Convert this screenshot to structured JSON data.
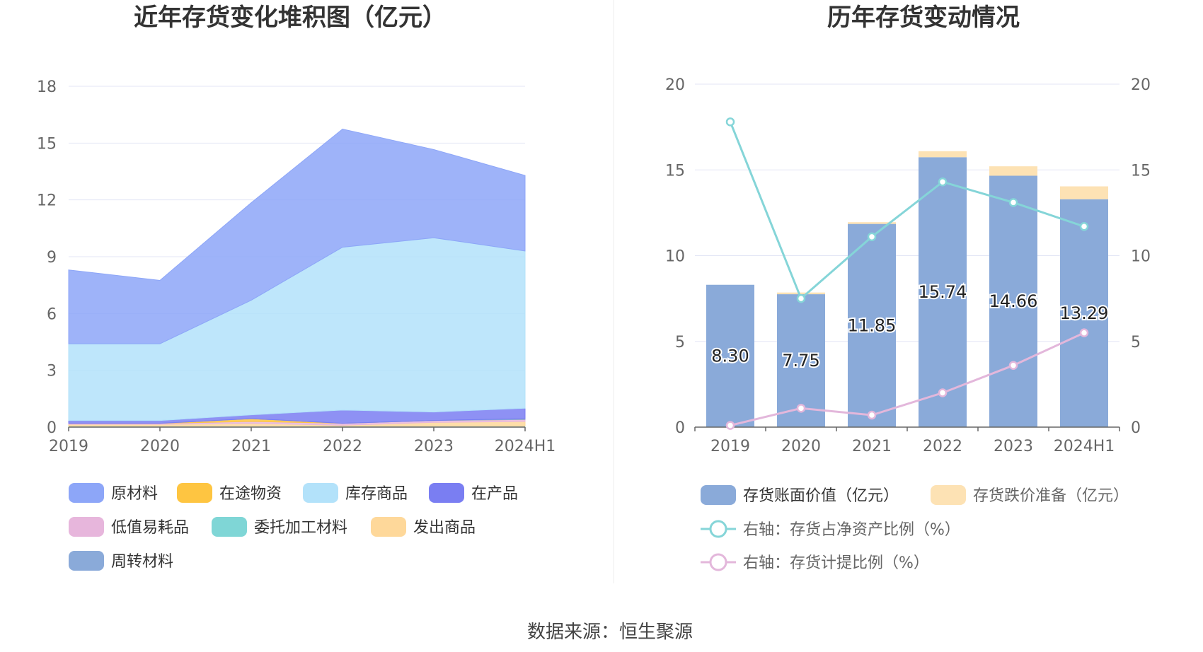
{
  "source_text": "数据来源：恒生聚源",
  "colors": {
    "raw_materials": "#8da6f8",
    "in_transit": "#fec541",
    "finished_goods": "#b3e2fa",
    "wip": "#7a7ef2",
    "low_value": "#e7b6dc",
    "outsourced": "#7fd6d6",
    "goods_shipped": "#fed89a",
    "turnover": "#8aaad9",
    "bar_book": "#8aaad9",
    "bar_reserve": "#fde2b4",
    "line_net_assets": "#85d5d8",
    "line_provision": "#e3b7db",
    "grid": "#e3e6f5",
    "axis": "#666666"
  },
  "chart_data": [
    {
      "type": "area",
      "stacked": true,
      "title": "近年存货变化堆积图（亿元）",
      "categories": [
        "2019",
        "2020",
        "2021",
        "2022",
        "2023",
        "2024H1"
      ],
      "ylim": [
        0,
        18
      ],
      "yticks": [
        "0",
        "3",
        "6",
        "9",
        "12",
        "15",
        "18"
      ],
      "grid": true,
      "legend_position": "bottom",
      "series": [
        {
          "key": "outsourced",
          "name": "委托加工材料",
          "values": [
            0.05,
            0.05,
            0.05,
            0.05,
            0.05,
            0.05
          ]
        },
        {
          "key": "goods_shipped",
          "name": "发出商品",
          "values": [
            0.1,
            0.1,
            0.15,
            0.05,
            0.2,
            0.25
          ]
        },
        {
          "key": "low_value",
          "name": "低值易耗品",
          "values": [
            0.05,
            0.05,
            0.1,
            0.1,
            0.1,
            0.1
          ]
        },
        {
          "key": "in_transit",
          "name": "在途物资",
          "values": [
            0.0,
            0.0,
            0.15,
            0.0,
            0.0,
            0.0
          ]
        },
        {
          "key": "turnover",
          "name": "周转材料",
          "values": [
            0.0,
            0.0,
            0.0,
            0.0,
            0.0,
            0.05
          ]
        },
        {
          "key": "wip",
          "name": "在产品",
          "values": [
            0.15,
            0.15,
            0.2,
            0.7,
            0.45,
            0.55
          ]
        },
        {
          "key": "finished_goods",
          "name": "库存商品",
          "values": [
            4.05,
            4.05,
            6.05,
            8.6,
            9.2,
            8.3
          ]
        },
        {
          "key": "raw_materials",
          "name": "原材料",
          "values": [
            3.9,
            3.35,
            5.15,
            6.24,
            4.66,
            3.99
          ]
        }
      ],
      "legend": [
        {
          "key": "raw_materials",
          "name": "原材料"
        },
        {
          "key": "in_transit",
          "name": "在途物资"
        },
        {
          "key": "finished_goods",
          "name": "库存商品"
        },
        {
          "key": "wip",
          "name": "在产品"
        },
        {
          "key": "low_value",
          "name": "低值易耗品"
        },
        {
          "key": "outsourced",
          "name": "委托加工材料"
        },
        {
          "key": "goods_shipped",
          "name": "发出商品"
        },
        {
          "key": "turnover",
          "name": "周转材料"
        }
      ]
    },
    {
      "type": "bar",
      "stacked": true,
      "title": "历年存货变动情况",
      "categories": [
        "2019",
        "2020",
        "2021",
        "2022",
        "2023",
        "2024H1"
      ],
      "ylim": [
        0,
        20
      ],
      "yticks": [
        "0",
        "5",
        "10",
        "15",
        "20"
      ],
      "y2lim": [
        0,
        20
      ],
      "y2ticks": [
        "0",
        "5",
        "10",
        "15",
        "20"
      ],
      "grid": true,
      "legend_position": "bottom",
      "series": [
        {
          "key": "bar_book",
          "name": "存货账面价值（亿元）",
          "values": [
            8.3,
            7.75,
            11.85,
            15.74,
            14.66,
            13.29
          ],
          "labels": [
            "8.30",
            "7.75",
            "11.85",
            "15.74",
            "14.66",
            "13.29"
          ]
        },
        {
          "key": "bar_reserve",
          "name": "存货跌价准备（亿元）",
          "values": [
            0.0,
            0.1,
            0.1,
            0.35,
            0.55,
            0.75
          ]
        }
      ],
      "lines": [
        {
          "key": "line_net_assets",
          "name": "右轴：存货占净资产比例（%）",
          "axis": "right",
          "values": [
            17.8,
            7.5,
            11.1,
            14.3,
            13.1,
            11.7
          ]
        },
        {
          "key": "line_provision",
          "name": "右轴：存货计提比例（%）",
          "axis": "right",
          "values": [
            0.1,
            1.1,
            0.7,
            2.0,
            3.6,
            5.5
          ]
        }
      ]
    }
  ]
}
